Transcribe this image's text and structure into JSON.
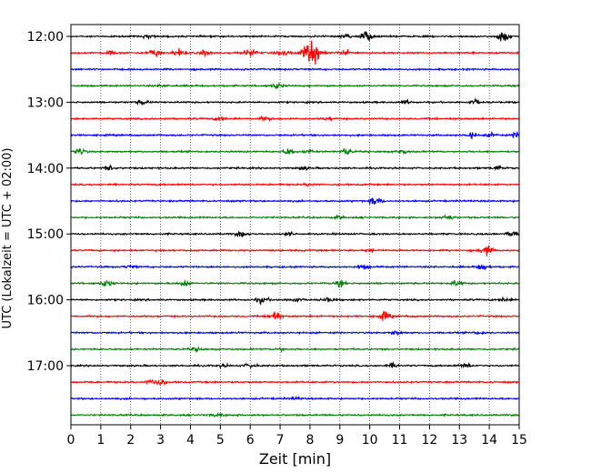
{
  "chart_data": {
    "type": "line",
    "title": "",
    "xlabel": "Zeit  [min]",
    "ylabel": "UTC (Lokalzeit = UTC + 02:00)",
    "xlim": [
      0,
      15
    ],
    "x_ticks": [
      0,
      1,
      2,
      3,
      4,
      5,
      6,
      7,
      8,
      9,
      10,
      11,
      12,
      13,
      14,
      15
    ],
    "y_tick_labels": [
      "12:00",
      "13:00",
      "14:00",
      "15:00",
      "16:00",
      "17:00"
    ],
    "grid": "vertical dotted",
    "trace_interval_min": 15,
    "trace_start": "12:00",
    "trace_count": 24,
    "colors": [
      "#000000",
      "#ff0000",
      "#0000ff",
      "#008000"
    ],
    "traces": [
      {
        "start": "12:00",
        "events": [
          {
            "t": 9.9,
            "amp": 8
          },
          {
            "t": 14.5,
            "amp": 9
          },
          {
            "t": 9.2,
            "amp": 3
          },
          {
            "t": 2.6,
            "amp": 2.5
          }
        ]
      },
      {
        "start": "12:15",
        "events": [
          {
            "t": 8.05,
            "amp": 18
          },
          {
            "t": 6.0,
            "amp": 8
          },
          {
            "t": 2.8,
            "amp": 6
          },
          {
            "t": 3.6,
            "amp": 5
          },
          {
            "t": 4.5,
            "amp": 4
          },
          {
            "t": 1.3,
            "amp": 3
          },
          {
            "t": 7.1,
            "amp": 3
          },
          {
            "t": 9.2,
            "amp": 4
          }
        ]
      },
      {
        "start": "12:30",
        "events": []
      },
      {
        "start": "12:45",
        "events": [
          {
            "t": 6.9,
            "amp": 4
          },
          {
            "t": 3.1,
            "amp": 1.5
          }
        ]
      },
      {
        "start": "13:00",
        "events": [
          {
            "t": 2.4,
            "amp": 3
          },
          {
            "t": 13.5,
            "amp": 3
          },
          {
            "t": 11.2,
            "amp": 2
          }
        ]
      },
      {
        "start": "13:15",
        "events": [
          {
            "t": 5.0,
            "amp": 3
          },
          {
            "t": 6.5,
            "amp": 2.5
          },
          {
            "t": 8.6,
            "amp": 2
          }
        ]
      },
      {
        "start": "13:30",
        "events": [
          {
            "t": 13.4,
            "amp": 4
          },
          {
            "t": 15.0,
            "amp": 6
          },
          {
            "t": 14.1,
            "amp": 3
          }
        ]
      },
      {
        "start": "13:45",
        "events": [
          {
            "t": 0.3,
            "amp": 5
          },
          {
            "t": 7.3,
            "amp": 5
          },
          {
            "t": 9.2,
            "amp": 5
          },
          {
            "t": 8.0,
            "amp": 3
          },
          {
            "t": 11.1,
            "amp": 3
          }
        ]
      },
      {
        "start": "14:00",
        "events": [
          {
            "t": 1.3,
            "amp": 3
          },
          {
            "t": 14.3,
            "amp": 3
          },
          {
            "t": 7.8,
            "amp": 2
          }
        ]
      },
      {
        "start": "14:15",
        "events": [
          {
            "t": 8.0,
            "amp": 2
          }
        ]
      },
      {
        "start": "14:30",
        "events": [
          {
            "t": 10.2,
            "amp": 6
          }
        ]
      },
      {
        "start": "14:45",
        "events": [
          {
            "t": 12.6,
            "amp": 4
          },
          {
            "t": 9.0,
            "amp": 2
          }
        ]
      },
      {
        "start": "15:00",
        "events": [
          {
            "t": 5.7,
            "amp": 4
          },
          {
            "t": 14.8,
            "amp": 5
          },
          {
            "t": 7.3,
            "amp": 2
          }
        ]
      },
      {
        "start": "15:15",
        "events": [
          {
            "t": 13.9,
            "amp": 8
          },
          {
            "t": 10.0,
            "amp": 2
          }
        ]
      },
      {
        "start": "15:30",
        "events": [
          {
            "t": 9.8,
            "amp": 3
          },
          {
            "t": 13.8,
            "amp": 4
          },
          {
            "t": 2.0,
            "amp": 2
          }
        ]
      },
      {
        "start": "15:45",
        "events": [
          {
            "t": 1.2,
            "amp": 5
          },
          {
            "t": 3.8,
            "amp": 4
          },
          {
            "t": 9.0,
            "amp": 4
          },
          {
            "t": 12.9,
            "amp": 4
          }
        ]
      },
      {
        "start": "16:00",
        "events": [
          {
            "t": 6.4,
            "amp": 5
          },
          {
            "t": 7.5,
            "amp": 3
          },
          {
            "t": 8.6,
            "amp": 3
          },
          {
            "t": 14.5,
            "amp": 3
          }
        ]
      },
      {
        "start": "16:15",
        "events": [
          {
            "t": 6.8,
            "amp": 8
          },
          {
            "t": 10.5,
            "amp": 6
          }
        ]
      },
      {
        "start": "16:30",
        "events": [
          {
            "t": 10.9,
            "amp": 3
          },
          {
            "t": 13.7,
            "amp": 2
          }
        ]
      },
      {
        "start": "16:45",
        "events": [
          {
            "t": 4.2,
            "amp": 3
          },
          {
            "t": 7.0,
            "amp": 2
          }
        ]
      },
      {
        "start": "17:00",
        "events": [
          {
            "t": 6.0,
            "amp": 3
          },
          {
            "t": 5.1,
            "amp": 2
          },
          {
            "t": 10.8,
            "amp": 3
          },
          {
            "t": 13.2,
            "amp": 3
          }
        ]
      },
      {
        "start": "17:15",
        "events": [
          {
            "t": 3.0,
            "amp": 5
          },
          {
            "t": 2.7,
            "amp": 3
          }
        ]
      },
      {
        "start": "17:30",
        "events": [
          {
            "t": 7.5,
            "amp": 1.5
          }
        ]
      },
      {
        "start": "17:45",
        "events": [
          {
            "t": 4.9,
            "amp": 2
          }
        ]
      }
    ]
  }
}
